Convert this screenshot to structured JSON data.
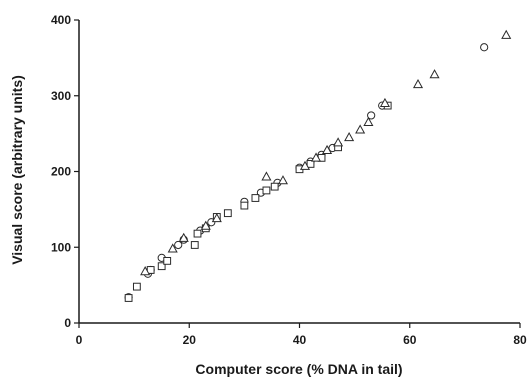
{
  "chart_data": {
    "type": "scatter",
    "xlabel": "Computer score (% DNA in tail)",
    "ylabel": "Visual score (arbitrary units)",
    "xlim": [
      0,
      80
    ],
    "ylim": [
      0,
      400
    ],
    "x_ticks": [
      "0",
      "20",
      "40",
      "60",
      "80"
    ],
    "y_ticks": [
      "0",
      "100",
      "200",
      "300",
      "400"
    ],
    "x_tick_values": [
      0,
      20,
      40,
      60,
      80
    ],
    "y_tick_values": [
      0,
      100,
      200,
      300,
      400
    ],
    "grid": false,
    "legend": "none",
    "series": [
      {
        "marker": "circle",
        "points": [
          [
            9,
            34
          ],
          [
            12.5,
            65
          ],
          [
            13,
            70
          ],
          [
            15,
            86
          ],
          [
            18,
            103
          ],
          [
            19,
            110
          ],
          [
            22,
            122
          ],
          [
            24,
            133
          ],
          [
            30,
            160
          ],
          [
            33,
            172
          ],
          [
            36,
            185
          ],
          [
            40,
            205
          ],
          [
            42,
            213
          ],
          [
            44,
            222
          ],
          [
            46,
            231
          ],
          [
            53,
            274
          ],
          [
            55,
            287
          ],
          [
            73.5,
            364
          ]
        ]
      },
      {
        "marker": "square",
        "points": [
          [
            9,
            33
          ],
          [
            10.5,
            48
          ],
          [
            13,
            70
          ],
          [
            15,
            75
          ],
          [
            16,
            82
          ],
          [
            21,
            103
          ],
          [
            21.5,
            118
          ],
          [
            23,
            125
          ],
          [
            25,
            140
          ],
          [
            27,
            145
          ],
          [
            30,
            155
          ],
          [
            32,
            165
          ],
          [
            34,
            175
          ],
          [
            35.5,
            180
          ],
          [
            40,
            203
          ],
          [
            42,
            210
          ],
          [
            44,
            218
          ],
          [
            47,
            232
          ],
          [
            56,
            287
          ]
        ]
      },
      {
        "marker": "triangle",
        "points": [
          [
            12,
            68
          ],
          [
            17,
            98
          ],
          [
            19,
            112
          ],
          [
            23,
            128
          ],
          [
            25,
            138
          ],
          [
            34,
            193
          ],
          [
            37,
            188
          ],
          [
            41,
            207
          ],
          [
            43,
            218
          ],
          [
            45,
            228
          ],
          [
            47,
            238
          ],
          [
            49,
            245
          ],
          [
            51,
            255
          ],
          [
            52.5,
            265
          ],
          [
            55.5,
            290
          ],
          [
            61.5,
            315
          ],
          [
            64.5,
            328
          ],
          [
            77.5,
            380
          ]
        ]
      }
    ]
  }
}
